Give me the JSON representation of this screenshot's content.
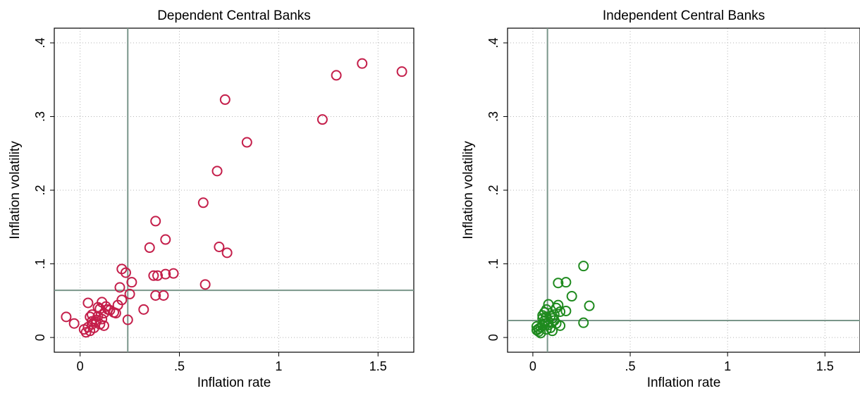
{
  "chart_data": [
    {
      "type": "scatter",
      "title": "Dependent Central Banks",
      "xlabel": "Inflation rate",
      "ylabel": "Inflation volatility",
      "xlim": [
        -0.13,
        1.68
      ],
      "ylim": [
        -0.02,
        0.42
      ],
      "x_ticks": [
        0,
        0.5,
        1,
        1.5
      ],
      "x_tick_labels": [
        "0",
        ".5",
        "1",
        "1.5"
      ],
      "y_ticks": [
        0,
        0.1,
        0.2,
        0.3,
        0.4
      ],
      "y_tick_labels": [
        "0",
        ".1",
        ".2",
        ".3",
        ".4"
      ],
      "grid": true,
      "marker": "hollow-circle",
      "color": "#c41e4a",
      "reference_lines": {
        "x": 0.24,
        "y": 0.064
      },
      "reference_color": "#7a968a",
      "points": [
        [
          1.62,
          0.361
        ],
        [
          1.42,
          0.372
        ],
        [
          1.29,
          0.356
        ],
        [
          1.22,
          0.296
        ],
        [
          0.84,
          0.265
        ],
        [
          0.73,
          0.323
        ],
        [
          0.69,
          0.226
        ],
        [
          0.62,
          0.183
        ],
        [
          0.7,
          0.123
        ],
        [
          0.74,
          0.115
        ],
        [
          0.63,
          0.072
        ],
        [
          0.43,
          0.133
        ],
        [
          0.38,
          0.158
        ],
        [
          0.35,
          0.122
        ],
        [
          0.37,
          0.084
        ],
        [
          0.39,
          0.084
        ],
        [
          0.43,
          0.086
        ],
        [
          0.47,
          0.087
        ],
        [
          0.38,
          0.057
        ],
        [
          0.42,
          0.057
        ],
        [
          0.32,
          0.038
        ],
        [
          0.21,
          0.093
        ],
        [
          0.23,
          0.088
        ],
        [
          0.26,
          0.075
        ],
        [
          0.25,
          0.059
        ],
        [
          0.2,
          0.068
        ],
        [
          0.21,
          0.051
        ],
        [
          0.24,
          0.024
        ],
        [
          0.19,
          0.044
        ],
        [
          0.17,
          0.034
        ],
        [
          0.15,
          0.037
        ],
        [
          0.13,
          0.042
        ],
        [
          0.11,
          0.048
        ],
        [
          0.1,
          0.039
        ],
        [
          0.12,
          0.033
        ],
        [
          0.09,
          0.029
        ],
        [
          0.08,
          0.024
        ],
        [
          0.06,
          0.022
        ],
        [
          0.05,
          0.028
        ],
        [
          0.04,
          0.047
        ],
        [
          0.06,
          0.018
        ],
        [
          0.07,
          0.013
        ],
        [
          0.05,
          0.009
        ],
        [
          0.03,
          0.007
        ],
        [
          0.02,
          0.011
        ],
        [
          0.04,
          0.014
        ],
        [
          0.1,
          0.018
        ],
        [
          0.12,
          0.016
        ],
        [
          0.08,
          0.021
        ],
        [
          0.06,
          0.031
        ],
        [
          0.11,
          0.025
        ],
        [
          -0.07,
          0.028
        ],
        [
          -0.03,
          0.019
        ],
        [
          0.14,
          0.038
        ],
        [
          0.18,
          0.033
        ],
        [
          0.09,
          0.041
        ]
      ]
    },
    {
      "type": "scatter",
      "title": "Independent Central Banks",
      "xlabel": "Inflation rate",
      "ylabel": "Inflation volatility",
      "xlim": [
        -0.13,
        1.68
      ],
      "ylim": [
        -0.02,
        0.42
      ],
      "x_ticks": [
        0,
        0.5,
        1,
        1.5
      ],
      "x_tick_labels": [
        "0",
        ".5",
        "1",
        "1.5"
      ],
      "y_ticks": [
        0,
        0.1,
        0.2,
        0.3,
        0.4
      ],
      "y_tick_labels": [
        "0",
        ".1",
        ".2",
        ".3",
        ".4"
      ],
      "grid": true,
      "marker": "hollow-circle",
      "color": "#1e8a1e",
      "reference_lines": {
        "x": 0.075,
        "y": 0.023
      },
      "reference_color": "#7a968a",
      "points": [
        [
          0.26,
          0.097
        ],
        [
          0.17,
          0.075
        ],
        [
          0.13,
          0.074
        ],
        [
          0.2,
          0.056
        ],
        [
          0.29,
          0.043
        ],
        [
          0.26,
          0.02
        ],
        [
          0.17,
          0.036
        ],
        [
          0.13,
          0.044
        ],
        [
          0.12,
          0.04
        ],
        [
          0.14,
          0.035
        ],
        [
          0.08,
          0.045
        ],
        [
          0.07,
          0.038
        ],
        [
          0.06,
          0.034
        ],
        [
          0.05,
          0.03
        ],
        [
          0.09,
          0.029
        ],
        [
          0.1,
          0.026
        ],
        [
          0.11,
          0.023
        ],
        [
          0.08,
          0.021
        ],
        [
          0.06,
          0.019
        ],
        [
          0.05,
          0.016
        ],
        [
          0.04,
          0.014
        ],
        [
          0.03,
          0.012
        ],
        [
          0.02,
          0.01
        ],
        [
          0.03,
          0.008
        ],
        [
          0.04,
          0.006
        ],
        [
          0.07,
          0.011
        ],
        [
          0.09,
          0.013
        ],
        [
          0.1,
          0.009
        ],
        [
          0.14,
          0.016
        ],
        [
          0.12,
          0.019
        ],
        [
          0.05,
          0.026
        ],
        [
          0.07,
          0.028
        ],
        [
          0.08,
          0.017
        ],
        [
          0.06,
          0.023
        ],
        [
          0.02,
          0.015
        ],
        [
          0.11,
          0.031
        ]
      ]
    }
  ]
}
